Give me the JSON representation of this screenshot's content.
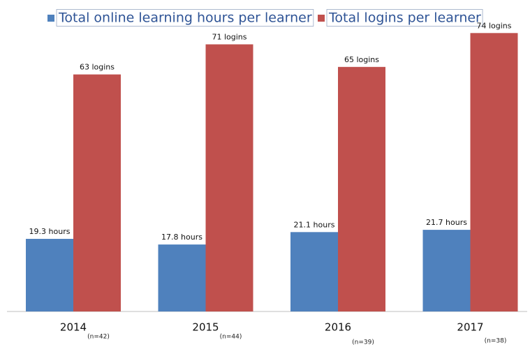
{
  "chart_data": {
    "type": "bar",
    "categories": [
      "2014",
      "2015",
      "2016",
      "2017"
    ],
    "annotations": [
      "(n=42)",
      "(n=44)",
      "(n=39)",
      "(n=38)"
    ],
    "series": [
      {
        "name": "Total online learning hours per learner",
        "color": "#4f81bd",
        "values": [
          19.3,
          17.8,
          21.1,
          21.7
        ],
        "value_labels": [
          "19.3 hours",
          "17.8 hours",
          "21.1 hours",
          "21.7 hours"
        ]
      },
      {
        "name": "Total logins per learner",
        "color": "#c0504d",
        "values": [
          63,
          71,
          65,
          74
        ],
        "value_labels": [
          "63 logins",
          "71 logins",
          "65 logins",
          "74 logins"
        ]
      }
    ],
    "ylim": [
      0,
      80
    ],
    "legend": "top"
  }
}
